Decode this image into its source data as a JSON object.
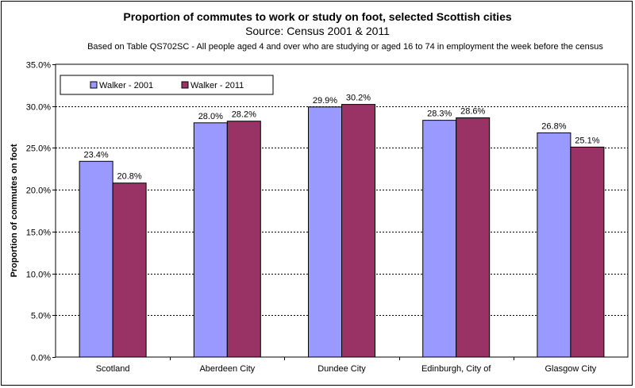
{
  "chart_data": {
    "type": "bar",
    "title": "Proportion of commutes to work or study on foot, selected Scottish cities",
    "subtitle": "Source: Census 2001 & 2011",
    "note": "Based on Table QS702SC - All people aged 4 and over who are studying or aged 16 to 74 in employment the week before the census",
    "xlabel": "",
    "ylabel": "Proportion of commutes on foot",
    "categories": [
      "Scotland",
      "Aberdeen City",
      "Dundee City",
      "Edinburgh, City of",
      "Glasgow City"
    ],
    "series": [
      {
        "name": "Walker - 2001",
        "values": [
          23.4,
          28.0,
          29.9,
          28.3,
          26.8
        ],
        "labels": [
          "23.4%",
          "28.0%",
          "29.9%",
          "28.3%",
          "26.8%"
        ],
        "color": "#9999FF"
      },
      {
        "name": "Walker - 2011",
        "values": [
          20.8,
          28.2,
          30.2,
          28.6,
          25.1
        ],
        "labels": [
          "20.8%",
          "28.2%",
          "30.2%",
          "28.6%",
          "25.1%"
        ],
        "color": "#993366"
      }
    ],
    "ylim": [
      0,
      35
    ],
    "yticks": [
      "0.0%",
      "5.0%",
      "10.0%",
      "15.0%",
      "20.0%",
      "25.0%",
      "30.0%",
      "35.0%"
    ],
    "grid": true,
    "legend_position": "top-left"
  }
}
